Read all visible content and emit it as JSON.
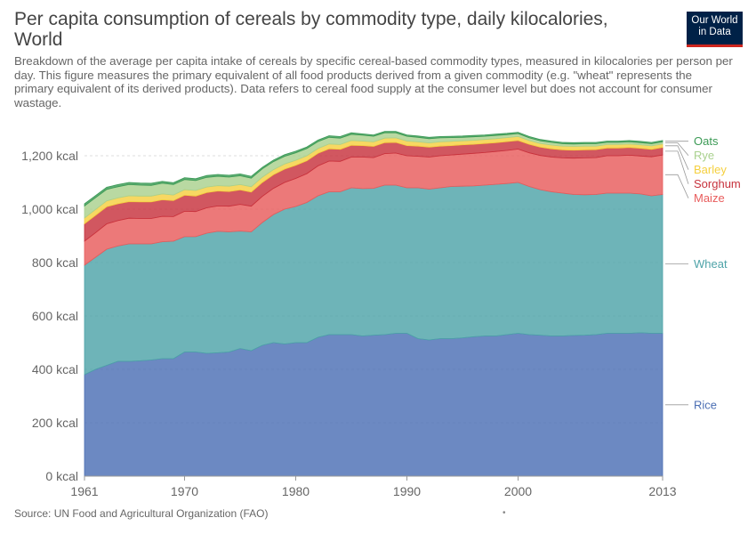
{
  "header": {
    "title": "Per capita consumption of cereals by commodity type, daily kilocalories, World",
    "subtitle": "Breakdown of the average per capita intake of cereals by specific cereal-based commodity types, measured in kilocalories per person per day. This figure measures the primary equivalent of all food products derived from a given commodity (e.g. \"wheat\" represents the primary equivalent of its derived products). Data refers to cereal food supply at the consumer level but does not account for consumer wastage.",
    "logo_line1": "Our World",
    "logo_line2": "in Data"
  },
  "footer": {
    "source": "Source: UN Food and Agricultural Organization (FAO)",
    "dot": "•"
  },
  "chart_data": {
    "type": "area",
    "stacked": true,
    "title": "Per capita consumption of cereals by commodity type, daily kilocalories, World",
    "xlabel": "",
    "ylabel": "",
    "xlim": [
      1961,
      2013
    ],
    "ylim": [
      0,
      1300
    ],
    "y_ticks": [
      "0 kcal",
      "200 kcal",
      "400 kcal",
      "600 kcal",
      "800 kcal",
      "1,000 kcal",
      "1,200 kcal"
    ],
    "y_tick_values": [
      0,
      200,
      400,
      600,
      800,
      1000,
      1200
    ],
    "x_ticks": [
      "1961",
      "1970",
      "1980",
      "1990",
      "2000",
      "2013"
    ],
    "x_tick_values": [
      1961,
      1970,
      1980,
      1990,
      2000,
      2013
    ],
    "grid": "horizontal dashed",
    "legend_placement": "right, end-of-line labels",
    "x": [
      1961,
      1962,
      1963,
      1964,
      1965,
      1966,
      1967,
      1968,
      1969,
      1970,
      1971,
      1972,
      1973,
      1974,
      1975,
      1976,
      1977,
      1978,
      1979,
      1980,
      1981,
      1982,
      1983,
      1984,
      1985,
      1986,
      1987,
      1988,
      1989,
      1990,
      1991,
      1992,
      1993,
      1994,
      1995,
      1996,
      1997,
      1998,
      1999,
      2000,
      2001,
      2002,
      2003,
      2004,
      2005,
      2006,
      2007,
      2008,
      2009,
      2010,
      2011,
      2012,
      2013
    ],
    "series": [
      {
        "name": "Rice",
        "color": "#4c6fb4",
        "values": [
          380,
          400,
          415,
          430,
          430,
          432,
          435,
          440,
          440,
          465,
          465,
          460,
          462,
          465,
          478,
          470,
          490,
          500,
          495,
          500,
          500,
          520,
          530,
          530,
          530,
          525,
          528,
          530,
          535,
          535,
          515,
          510,
          515,
          515,
          518,
          522,
          525,
          525,
          530,
          535,
          530,
          528,
          525,
          525,
          527,
          528,
          530,
          535,
          535,
          535,
          537,
          535,
          535
        ]
      },
      {
        "name": "Wheat",
        "color": "#4ea3a8",
        "values": [
          410,
          420,
          435,
          432,
          440,
          438,
          435,
          438,
          440,
          432,
          432,
          450,
          455,
          450,
          440,
          445,
          460,
          480,
          505,
          510,
          525,
          530,
          535,
          535,
          550,
          552,
          550,
          560,
          555,
          545,
          565,
          565,
          565,
          570,
          568,
          565,
          565,
          568,
          566,
          565,
          555,
          545,
          540,
          535,
          528,
          526,
          525,
          525,
          525,
          525,
          520,
          515,
          520
        ]
      },
      {
        "name": "Maize",
        "color": "#e85c5c",
        "values": [
          90,
          92,
          95,
          95,
          96,
          95,
          95,
          95,
          92,
          95,
          94,
          95,
          95,
          96,
          100,
          96,
          98,
          98,
          100,
          105,
          108,
          112,
          115,
          114,
          115,
          118,
          115,
          118,
          120,
          120,
          118,
          120,
          120,
          118,
          120,
          122,
          122,
          123,
          124,
          125,
          126,
          128,
          130,
          132,
          136,
          138,
          138,
          140,
          140,
          142,
          142,
          146,
          148
        ]
      },
      {
        "name": "Sorghum",
        "color": "#c7323d",
        "values": [
          65,
          65,
          64,
          63,
          62,
          62,
          62,
          62,
          60,
          60,
          58,
          57,
          56,
          55,
          54,
          53,
          52,
          51,
          50,
          49,
          48,
          47,
          46,
          45,
          44,
          43,
          42,
          41,
          40,
          38,
          38,
          37,
          36,
          35,
          35,
          34,
          34,
          33,
          33,
          32,
          32,
          31,
          31,
          30,
          30,
          30,
          30,
          29,
          29,
          29,
          29,
          28,
          28
        ]
      },
      {
        "name": "Barley",
        "color": "#f5d03f",
        "values": [
          22,
          22,
          22,
          22,
          22,
          22,
          22,
          22,
          21,
          21,
          21,
          21,
          20,
          20,
          20,
          20,
          20,
          19,
          19,
          19,
          19,
          18,
          18,
          18,
          18,
          17,
          17,
          17,
          17,
          17,
          16,
          16,
          16,
          16,
          15,
          15,
          15,
          15,
          15,
          15,
          14,
          14,
          14,
          14,
          14,
          14,
          13,
          13,
          13,
          13,
          13,
          13,
          13
        ]
      },
      {
        "name": "Rye",
        "color": "#a9d18e",
        "values": [
          45,
          44,
          43,
          42,
          42,
          41,
          40,
          40,
          39,
          38,
          37,
          36,
          35,
          34,
          33,
          32,
          31,
          30,
          29,
          28,
          27,
          26,
          25,
          24,
          23,
          22,
          21,
          20,
          19,
          18,
          17,
          16,
          15,
          14,
          13,
          13,
          12,
          12,
          11,
          11,
          10,
          10,
          10,
          9,
          9,
          9,
          9,
          8,
          8,
          8,
          8,
          8,
          8
        ]
      },
      {
        "name": "Oats",
        "color": "#3b9a55",
        "values": [
          8,
          8,
          8,
          8,
          8,
          8,
          8,
          7,
          7,
          7,
          7,
          7,
          7,
          7,
          7,
          7,
          6,
          6,
          6,
          6,
          6,
          6,
          6,
          6,
          6,
          5,
          5,
          5,
          5,
          5,
          5,
          5,
          5,
          5,
          5,
          5,
          5,
          5,
          5,
          5,
          5,
          5,
          5,
          5,
          5,
          5,
          5,
          5,
          5,
          5,
          5,
          5,
          5
        ]
      }
    ]
  }
}
